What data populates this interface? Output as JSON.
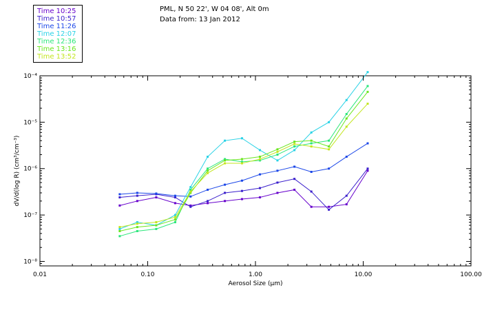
{
  "header": {
    "line1": "PML, N 50 22', W 04 08', Alt 0m",
    "line2": "Data from: 13 Jan 2012"
  },
  "chart_data": {
    "type": "line",
    "title": "",
    "xlabel": "Aerosol Size (µm)",
    "ylabel": "dV/d(log R) (cm³/cm⁻³)",
    "xscale": "log",
    "yscale": "log",
    "xlim": [
      0.01,
      100
    ],
    "ylim": [
      8e-09,
      0.0001
    ],
    "x_ticks": [
      {
        "value": 0.01,
        "label": "0.01"
      },
      {
        "value": 0.1,
        "label": "0.10"
      },
      {
        "value": 1,
        "label": "1.00"
      },
      {
        "value": 10,
        "label": "10.00"
      },
      {
        "value": 100,
        "label": "100.00"
      }
    ],
    "y_ticks": [
      {
        "value": 1e-08,
        "label": "10⁻⁸"
      },
      {
        "value": 1e-07,
        "label": "10⁻⁷"
      },
      {
        "value": 1e-06,
        "label": "10⁻⁶"
      },
      {
        "value": 1e-05,
        "label": "10⁻⁵"
      },
      {
        "value": 0.0001,
        "label": "10⁻⁴"
      }
    ],
    "legend_placement": "top-left, outside plot",
    "grid": false,
    "x": [
      0.055,
      0.08,
      0.12,
      0.18,
      0.25,
      0.36,
      0.52,
      0.75,
      1.1,
      1.6,
      2.3,
      3.3,
      4.8,
      7.0,
      11.0
    ],
    "series": [
      {
        "name": "Time 10:25",
        "color": "#6600cc",
        "values": [
          1.6e-07,
          2e-07,
          2.4e-07,
          1.8e-07,
          1.6e-07,
          1.8e-07,
          2e-07,
          2.2e-07,
          2.4e-07,
          3e-07,
          3.5e-07,
          1.5e-07,
          1.5e-07,
          1.7e-07,
          9e-07
        ]
      },
      {
        "name": "Time 10:57",
        "color": "#3a1fcc",
        "values": [
          2.4e-07,
          2.6e-07,
          2.8e-07,
          2.4e-07,
          1.5e-07,
          2e-07,
          3e-07,
          3.3e-07,
          3.8e-07,
          5e-07,
          6e-07,
          3.2e-07,
          1.3e-07,
          2.6e-07,
          1e-06
        ]
      },
      {
        "name": "Time 11:26",
        "color": "#1a46e8",
        "values": [
          2.8e-07,
          3e-07,
          2.9e-07,
          2.6e-07,
          2.5e-07,
          3.5e-07,
          4.5e-07,
          5.5e-07,
          7.5e-07,
          9e-07,
          1.1e-06,
          8.5e-07,
          1e-06,
          1.8e-06,
          3.5e-06
        ]
      },
      {
        "name": "Time 12:07",
        "color": "#28d2e6",
        "values": [
          5e-08,
          7e-08,
          6e-08,
          1e-07,
          4e-07,
          1.8e-06,
          4e-06,
          4.5e-06,
          2.5e-06,
          1.5e-06,
          2.5e-06,
          6e-06,
          1e-05,
          3e-05,
          0.00012
        ]
      },
      {
        "name": "Time 12:36",
        "color": "#2ae67a",
        "values": [
          3.5e-08,
          4.5e-08,
          5e-08,
          7e-08,
          3.5e-07,
          1e-06,
          1.6e-06,
          1.4e-06,
          1.5e-06,
          2e-06,
          3e-06,
          3.5e-06,
          4e-06,
          1.5e-05,
          6e-05
        ]
      },
      {
        "name": "Time 13:16",
        "color": "#6ae61e",
        "values": [
          4.5e-08,
          5.5e-08,
          6e-08,
          8e-08,
          3e-07,
          9e-07,
          1.5e-06,
          1.6e-06,
          1.8e-06,
          2.6e-06,
          3.8e-06,
          4e-06,
          3e-06,
          1.2e-05,
          4.5e-05
        ]
      },
      {
        "name": "Time 13:52",
        "color": "#c3e61e",
        "values": [
          5.5e-08,
          6.5e-08,
          7e-08,
          9e-08,
          3.2e-07,
          8e-07,
          1.3e-06,
          1.3e-06,
          1.6e-06,
          2.3e-06,
          3.4e-06,
          3e-06,
          2.6e-06,
          8e-06,
          2.5e-05
        ]
      }
    ]
  }
}
